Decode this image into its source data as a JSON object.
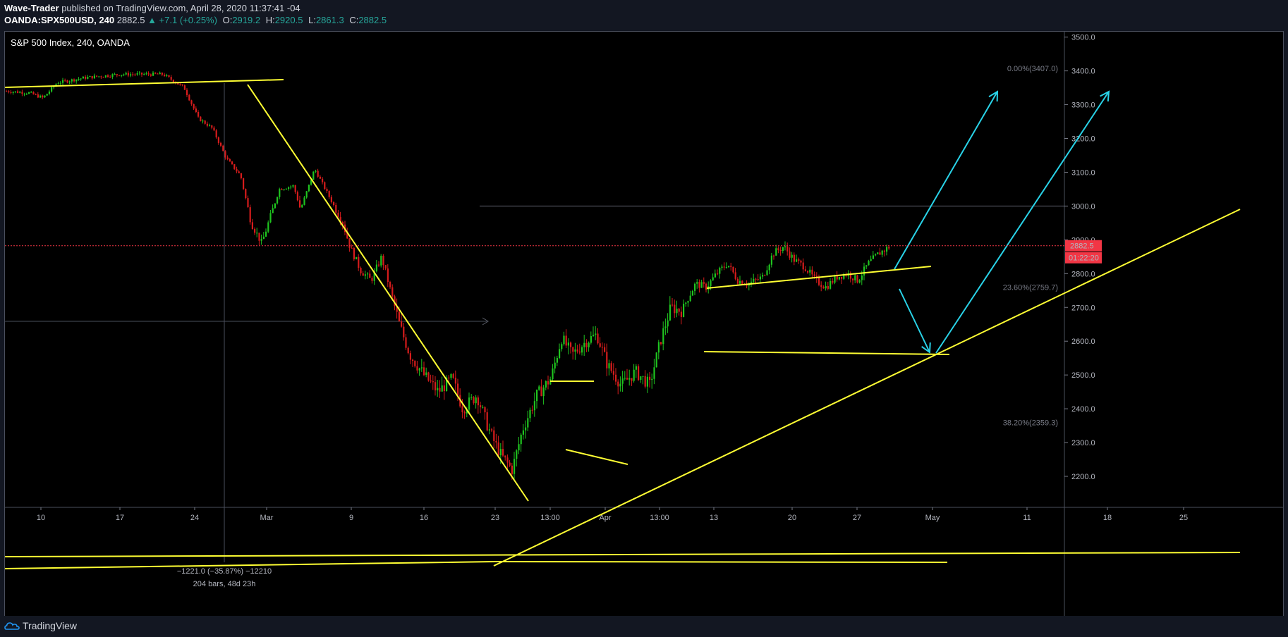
{
  "header": {
    "author": "Wave-Trader",
    "published_text": "published on TradingView.com, April 28, 2020 11:37:41 -04",
    "ticker": "OANDA:SPX500USD, 240",
    "last": "2882.5",
    "change": "▲ +7.1 (+0.25%)",
    "o_label": "O:",
    "o_value": "2919.2",
    "h_label": "H:",
    "h_value": "2920.5",
    "l_label": "L:",
    "l_value": "2861.3",
    "c_label": "C:",
    "c_value": "2882.5"
  },
  "footer": {
    "brand": "TradingView"
  },
  "colors": {
    "up": "#26a69a",
    "candle_up": "#1fc41f",
    "candle_down": "#d61c1c",
    "drawing": "#ffff33",
    "arrow": "#29d3e8",
    "price_label": "#f23645"
  },
  "chart_data": {
    "type": "candlestick",
    "title": "S&P 500 Index, 240, OANDA",
    "ylim": [
      2130,
      3540
    ],
    "y_ticks": [
      2200,
      2300,
      2400,
      2500,
      2600,
      2700,
      2800,
      2900,
      3000,
      3100,
      3200,
      3300,
      3400,
      3500
    ],
    "y_tick_labels": [
      "2200.0",
      "2300.0",
      "2400.0",
      "2500.0",
      "2600.0",
      "2700.0",
      "2800.0",
      "2900.0",
      "3000.0",
      "3100.0",
      "3200.0",
      "3300.0",
      "3400.0",
      "3500.0"
    ],
    "x_ticks": [
      "10",
      "17",
      "24",
      "Mar",
      "9",
      "16",
      "23",
      "13:00",
      "Apr",
      "13:00",
      "13",
      "20",
      "27",
      "May",
      "11",
      "18",
      "25"
    ],
    "last_price": 2882.5,
    "last_price_label": "2882.5",
    "countdown": "01:22:20",
    "horizontal_level": 3000,
    "fib_levels": [
      {
        "label": "0.00%(3407.0)",
        "value": 3407.0
      },
      {
        "label": "23.60%(2759.7)",
        "value": 2759.7
      },
      {
        "label": "38.20%(2359.3)",
        "value": 2359.3
      }
    ],
    "measure": {
      "value_text": "−1221.0 (−35.87%) −12210",
      "bars_text": "204 bars, 48d 23h"
    },
    "close_path": [
      [
        0,
        3340
      ],
      [
        0.02,
        3335
      ],
      [
        0.04,
        3325
      ],
      [
        0.06,
        3370
      ],
      [
        0.08,
        3380
      ],
      [
        0.1,
        3385
      ],
      [
        0.12,
        3380
      ],
      [
        0.14,
        3390
      ],
      [
        0.16,
        3390
      ],
      [
        0.18,
        3370
      ],
      [
        0.2,
        3390
      ],
      [
        0.22,
        3380
      ],
      [
        0.24,
        3320
      ],
      [
        0.26,
        3250
      ],
      [
        0.28,
        3230
      ],
      [
        0.3,
        3140
      ],
      [
        0.32,
        3100
      ],
      [
        0.34,
        2980
      ],
      [
        0.36,
        2900
      ],
      [
        0.38,
        2960
      ],
      [
        0.4,
        3050
      ],
      [
        0.42,
        3080
      ],
      [
        0.44,
        2990
      ],
      [
        0.46,
        3040
      ],
      [
        0.48,
        3100
      ],
      [
        0.5,
        3060
      ],
      [
        0.52,
        3000
      ],
      [
        0.54,
        2950
      ],
      [
        0.56,
        2870
      ],
      [
        0.58,
        2780
      ],
      [
        0.6,
        2770
      ],
      [
        0.62,
        2830
      ],
      [
        0.64,
        2850
      ],
      [
        0.66,
        2760
      ],
      [
        0.68,
        2720
      ],
      [
        0.7,
        2640
      ],
      [
        0.72,
        2580
      ],
      [
        0.74,
        2500
      ],
      [
        0.76,
        2460
      ],
      [
        0.78,
        2520
      ],
      [
        0.8,
        2440
      ],
      [
        0.82,
        2480
      ],
      [
        0.84,
        2400
      ],
      [
        0.86,
        2390
      ],
      [
        0.88,
        2420
      ],
      [
        0.9,
        2360
      ],
      [
        0.92,
        2340
      ],
      [
        0.94,
        2400
      ],
      [
        0.96,
        2280
      ],
      [
        0.98,
        2200
      ],
      [
        1.0,
        2190
      ]
    ]
  }
}
